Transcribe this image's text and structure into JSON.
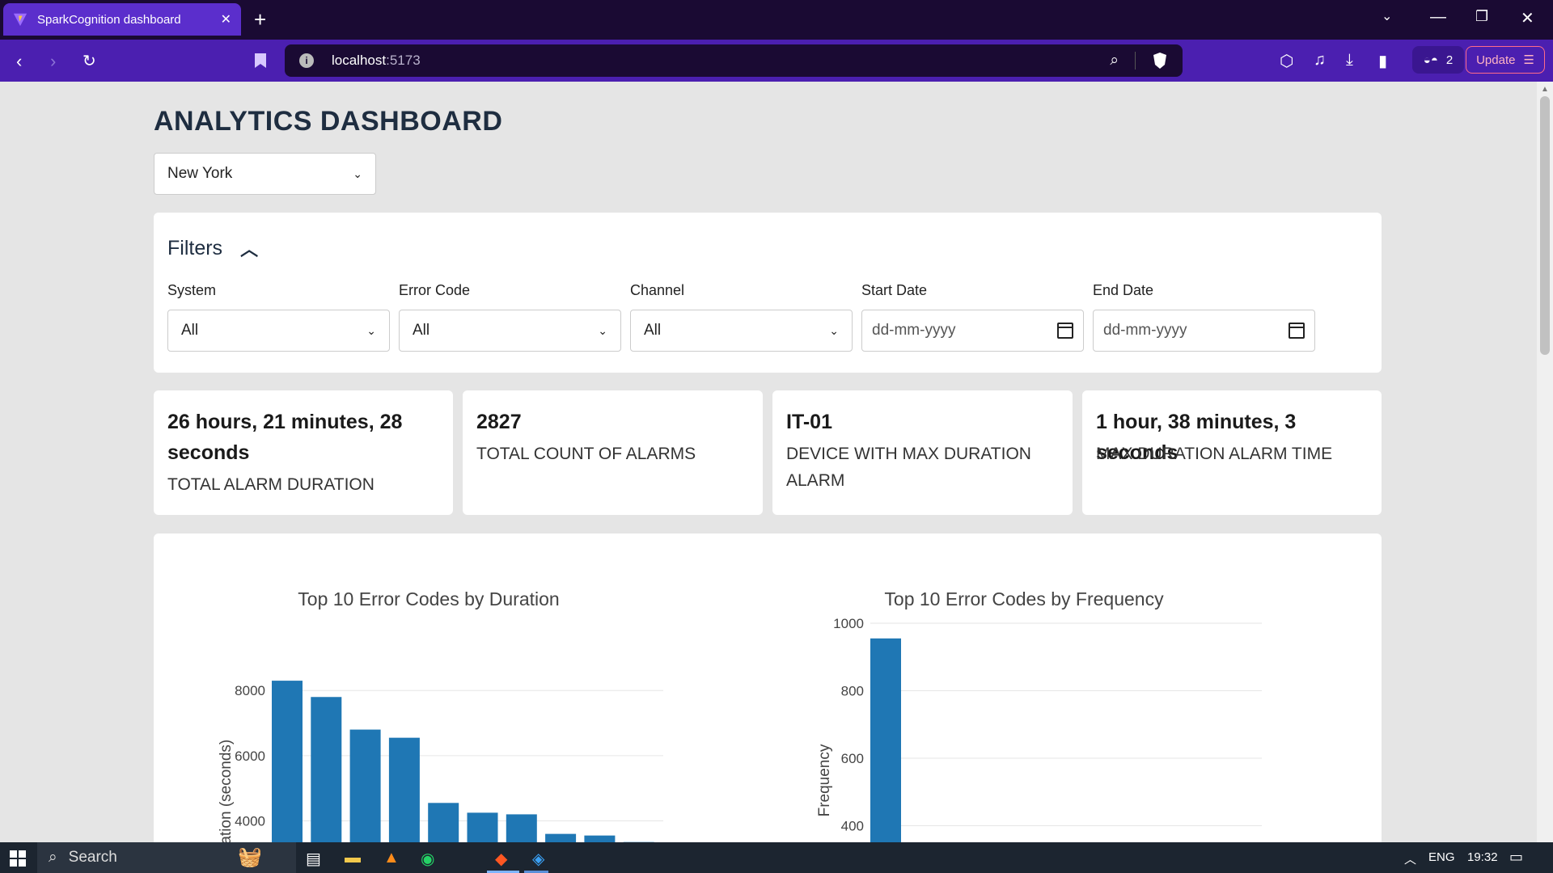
{
  "browser": {
    "tab_title": "SparkCognition dashboard",
    "url_host": "localhost",
    "url_port": ":5173",
    "shields_count": "2",
    "update_label": "Update"
  },
  "page": {
    "title": "ANALYTICS DASHBOARD",
    "city_selected": "New York"
  },
  "filters": {
    "title": "Filters",
    "fields": [
      {
        "label": "System",
        "value": "All"
      },
      {
        "label": "Error Code",
        "value": "All"
      },
      {
        "label": "Channel",
        "value": "All"
      },
      {
        "label": "Start Date",
        "placeholder": "dd-mm-yyyy"
      },
      {
        "label": "End Date",
        "placeholder": "dd-mm-yyyy"
      }
    ]
  },
  "kpis": [
    {
      "value": "26 hours, 21 minutes, 28 seconds",
      "label": "TOTAL ALARM DURATION"
    },
    {
      "value": "2827",
      "label": "TOTAL COUNT OF ALARMS"
    },
    {
      "value": "IT-01",
      "label": "DEVICE WITH MAX DURATION ALARM"
    },
    {
      "value": "1 hour, 38 minutes, 3 seconds",
      "label": "MAX DURATION ALARM TIME"
    }
  ],
  "chart_data": [
    {
      "type": "bar",
      "title": "Top 10 Error Codes by Duration",
      "ylabel": "Duration (seconds)",
      "values": [
        8300,
        7800,
        6800,
        6550,
        4550,
        4250,
        4200,
        3600,
        3550,
        3350
      ],
      "yticks": [
        4000,
        6000,
        8000
      ],
      "ylim": [
        2400,
        8600
      ],
      "color": "#1f77b4",
      "grid": true
    },
    {
      "type": "bar",
      "title": "Top 10 Error Codes by Frequency",
      "ylabel": "Frequency",
      "values": [
        955
      ],
      "yticks": [
        400,
        600,
        800,
        1000
      ],
      "ylim": [
        260,
        1000
      ],
      "color": "#1f77b4",
      "grid": true
    }
  ],
  "taskbar": {
    "search_label": "Search",
    "lang": "ENG",
    "time": "19:32"
  }
}
